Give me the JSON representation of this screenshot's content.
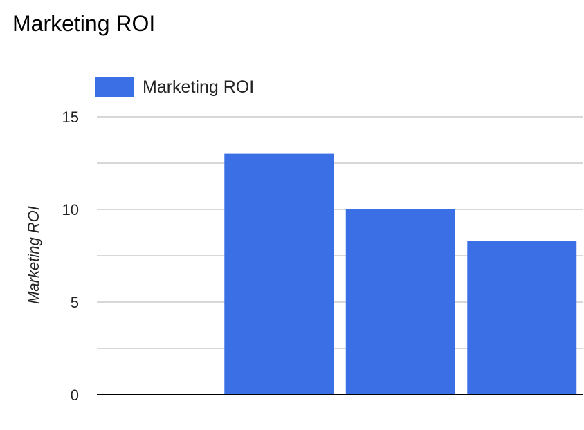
{
  "chart_data": {
    "type": "bar",
    "title": "Marketing ROI",
    "xlabel": "",
    "ylabel": "Marketing ROI",
    "categories": [
      "",
      "",
      ""
    ],
    "series": [
      {
        "name": "Marketing ROI",
        "values": [
          13.0,
          10.0,
          8.3
        ],
        "color": "#3b6fe6"
      }
    ],
    "ylim": [
      0,
      15
    ],
    "yticks": [
      "0",
      "5",
      "10",
      "15"
    ],
    "grid": true,
    "legend_position": "top-left"
  },
  "colors": {
    "bar": "#3b6fe6",
    "gridline": "#cccccc",
    "baseline": "#000000"
  }
}
